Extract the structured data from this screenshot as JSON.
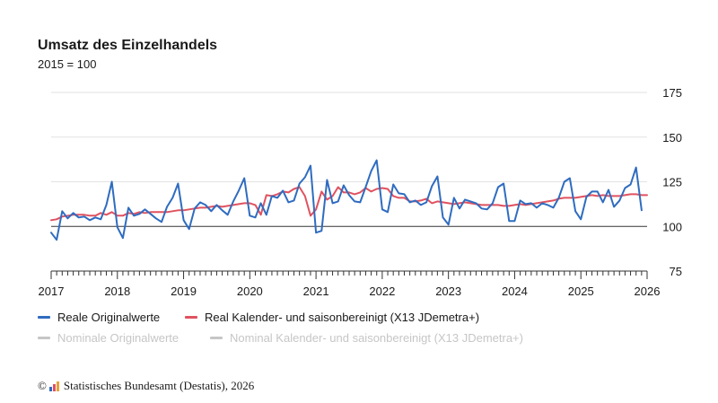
{
  "chart_data": {
    "type": "line",
    "title": "Umsatz des Einzelhandels",
    "subtitle": "2015 = 100",
    "xlabel": "",
    "ylabel": "",
    "x_ticks": [
      "2017",
      "2018",
      "2019",
      "2020",
      "2021",
      "2022",
      "2023",
      "2024",
      "2025",
      "2026"
    ],
    "y_ticks": [
      "75",
      "100",
      "125",
      "150",
      "175"
    ],
    "ylim": [
      75,
      180
    ],
    "x_range": [
      "2017-01",
      "2026-01"
    ],
    "reference_line": 100,
    "grid": "horizontal",
    "legend_position": "bottom",
    "series": [
      {
        "name": "Reale Originalwerte",
        "color": "#2f6cc0",
        "active": true,
        "x_start": "2017-01",
        "values": [
          96.5,
          92.5,
          108.5,
          104.5,
          107.5,
          105,
          105.5,
          103.5,
          105,
          104,
          112,
          125,
          99.5,
          93.5,
          110.5,
          106,
          107,
          109.5,
          107,
          104.5,
          102.5,
          111,
          116,
          124,
          103.5,
          98.5,
          110,
          113.5,
          112,
          108.5,
          112,
          109,
          106.5,
          114,
          120,
          127,
          106,
          105,
          113,
          106.5,
          117,
          116,
          120,
          113.5,
          114.5,
          124,
          127.5,
          134,
          96.5,
          97.5,
          126,
          113,
          114,
          123,
          117.5,
          114,
          113.5,
          122,
          131,
          137,
          109.5,
          108,
          123.5,
          118.5,
          118,
          113.5,
          114.5,
          112,
          113.5,
          122.5,
          128,
          105,
          101,
          116,
          110,
          115,
          114,
          113,
          110,
          109.5,
          113,
          122,
          124,
          103,
          103,
          114.5,
          112.5,
          113,
          110.5,
          113,
          112,
          110.5,
          116,
          125,
          127,
          108.5,
          104,
          116.5,
          119.5,
          119.5,
          113.5,
          120.5,
          111,
          114.5,
          121.5,
          123.5,
          133,
          109
        ]
      },
      {
        "name": "Real Kalender- und saisonbereinigt (X13 JDemetra+)",
        "color": "#e0525f",
        "active": true,
        "x_start": "2017-01",
        "values": [
          103.5,
          104,
          105.5,
          106,
          106.5,
          106.5,
          106.5,
          106,
          106,
          107.5,
          106.5,
          108,
          106,
          106,
          107.5,
          107,
          108,
          107.5,
          108,
          108,
          108,
          108,
          108.5,
          109,
          109,
          109.5,
          110,
          110.5,
          110.5,
          111,
          111.5,
          111,
          111.5,
          112,
          112.5,
          113,
          113,
          112,
          106.5,
          117.5,
          117,
          118,
          119.5,
          119,
          121,
          122,
          117,
          106,
          109.5,
          119.5,
          115,
          117,
          122,
          119,
          119,
          118,
          119,
          121.5,
          119.5,
          121,
          121.5,
          121,
          117,
          116,
          116,
          114,
          114,
          114.5,
          115.5,
          113,
          114,
          113.5,
          113,
          112.5,
          113,
          113.5,
          113,
          112.5,
          112,
          112,
          112,
          112,
          111.5,
          111.5,
          112,
          112.5,
          112,
          112.5,
          113,
          113.5,
          114,
          114.5,
          115.5,
          116,
          116,
          116,
          116.5,
          117,
          117.5,
          117,
          117.5,
          117,
          117,
          117,
          117.5,
          118,
          118,
          117.5,
          117.5
        ]
      },
      {
        "name": "Nominale Originalwerte",
        "color": "#c6c6c6",
        "active": false
      },
      {
        "name": "Nominal Kalender- und saisonbereinigt (X13 JDemetra+)",
        "color": "#c6c6c6",
        "active": false
      }
    ]
  },
  "source": {
    "copyright_symbol": "©",
    "text": "Statistisches Bundesamt (Destatis), 2026"
  }
}
